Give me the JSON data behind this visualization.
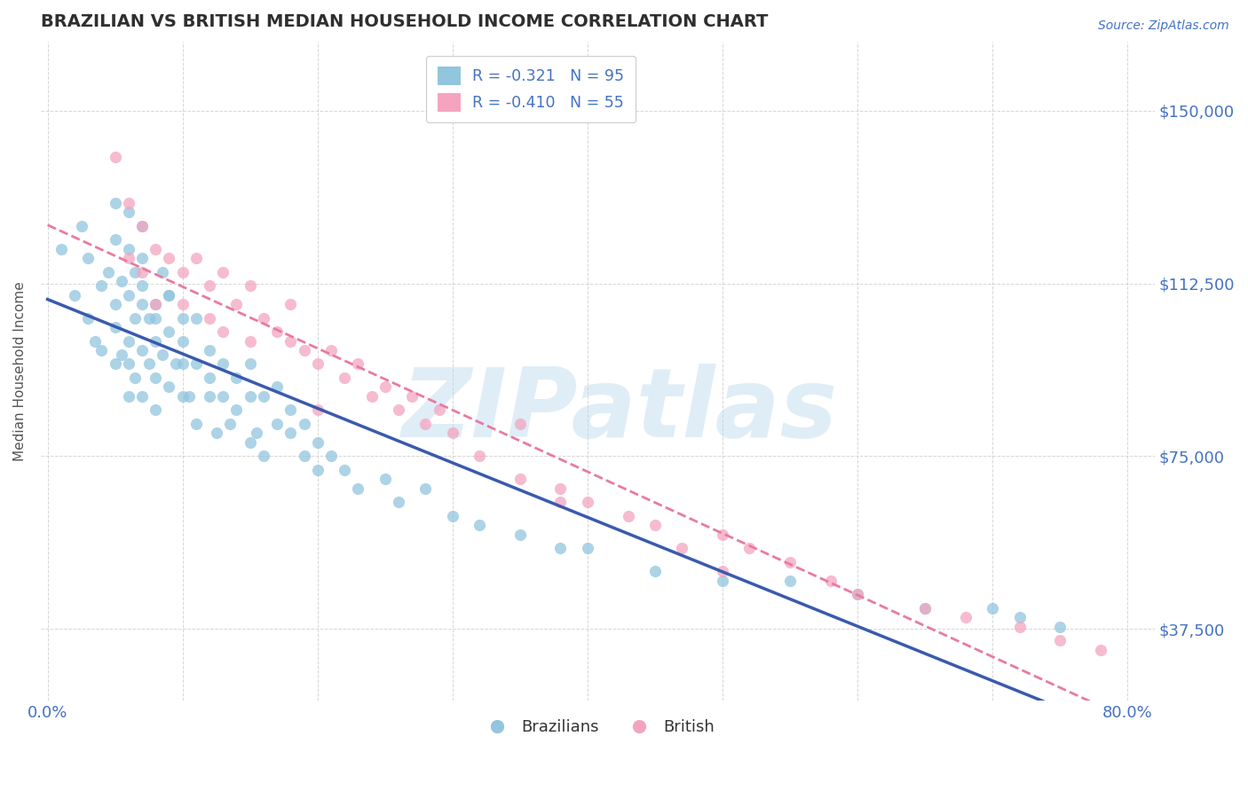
{
  "title": "BRAZILIAN VS BRITISH MEDIAN HOUSEHOLD INCOME CORRELATION CHART",
  "source_text": "Source: ZipAtlas.com",
  "ylabel": "Median Household Income",
  "xlim": [
    -0.005,
    0.82
  ],
  "ylim": [
    22000,
    165000
  ],
  "yticks": [
    37500,
    75000,
    112500,
    150000
  ],
  "ytick_labels": [
    "$37,500",
    "$75,000",
    "$112,500",
    "$150,000"
  ],
  "xticks": [
    0.0,
    0.1,
    0.2,
    0.3,
    0.4,
    0.5,
    0.6,
    0.7,
    0.8
  ],
  "brazil_color": "#92c5de",
  "british_color": "#f4a4bf",
  "brazil_R": -0.321,
  "brazil_N": 95,
  "british_R": -0.41,
  "british_N": 55,
  "brazil_line_color": "#3a5aad",
  "british_line_color": "#e87ba0",
  "title_color": "#2f2f2f",
  "tick_label_color": "#4472c4",
  "background_color": "#ffffff",
  "grid_color": "#bbbbbb",
  "watermark": "ZIPatlas",
  "brazil_scatter_x": [
    0.01,
    0.02,
    0.025,
    0.03,
    0.03,
    0.035,
    0.04,
    0.04,
    0.045,
    0.05,
    0.05,
    0.05,
    0.05,
    0.055,
    0.055,
    0.06,
    0.06,
    0.06,
    0.06,
    0.06,
    0.065,
    0.065,
    0.065,
    0.07,
    0.07,
    0.07,
    0.07,
    0.07,
    0.075,
    0.075,
    0.08,
    0.08,
    0.08,
    0.08,
    0.085,
    0.085,
    0.09,
    0.09,
    0.09,
    0.095,
    0.1,
    0.1,
    0.1,
    0.1,
    0.105,
    0.11,
    0.11,
    0.11,
    0.12,
    0.12,
    0.12,
    0.125,
    0.13,
    0.13,
    0.135,
    0.14,
    0.14,
    0.15,
    0.15,
    0.15,
    0.155,
    0.16,
    0.16,
    0.17,
    0.17,
    0.18,
    0.18,
    0.19,
    0.19,
    0.2,
    0.2,
    0.21,
    0.22,
    0.23,
    0.25,
    0.26,
    0.28,
    0.3,
    0.32,
    0.35,
    0.38,
    0.4,
    0.45,
    0.5,
    0.55,
    0.6,
    0.65,
    0.7,
    0.72,
    0.75,
    0.05,
    0.07,
    0.09,
    0.06,
    0.08
  ],
  "brazil_scatter_y": [
    120000,
    110000,
    125000,
    105000,
    118000,
    100000,
    112000,
    98000,
    115000,
    108000,
    95000,
    103000,
    122000,
    97000,
    113000,
    110000,
    100000,
    95000,
    88000,
    120000,
    105000,
    92000,
    115000,
    108000,
    98000,
    112000,
    88000,
    125000,
    95000,
    105000,
    100000,
    92000,
    108000,
    85000,
    97000,
    115000,
    102000,
    90000,
    110000,
    95000,
    100000,
    88000,
    95000,
    105000,
    88000,
    95000,
    82000,
    105000,
    92000,
    88000,
    98000,
    80000,
    88000,
    95000,
    82000,
    85000,
    92000,
    88000,
    78000,
    95000,
    80000,
    88000,
    75000,
    82000,
    90000,
    80000,
    85000,
    75000,
    82000,
    78000,
    72000,
    75000,
    72000,
    68000,
    70000,
    65000,
    68000,
    62000,
    60000,
    58000,
    55000,
    55000,
    50000,
    48000,
    48000,
    45000,
    42000,
    42000,
    40000,
    38000,
    130000,
    118000,
    110000,
    128000,
    105000
  ],
  "british_scatter_x": [
    0.05,
    0.06,
    0.06,
    0.07,
    0.07,
    0.08,
    0.08,
    0.09,
    0.1,
    0.1,
    0.11,
    0.12,
    0.12,
    0.13,
    0.13,
    0.14,
    0.15,
    0.15,
    0.16,
    0.17,
    0.18,
    0.18,
    0.19,
    0.2,
    0.21,
    0.22,
    0.23,
    0.24,
    0.25,
    0.26,
    0.27,
    0.28,
    0.29,
    0.3,
    0.32,
    0.35,
    0.38,
    0.4,
    0.43,
    0.45,
    0.5,
    0.52,
    0.55,
    0.58,
    0.6,
    0.65,
    0.68,
    0.72,
    0.75,
    0.78,
    0.2,
    0.5,
    0.47,
    0.35,
    0.38
  ],
  "british_scatter_y": [
    140000,
    130000,
    118000,
    125000,
    115000,
    120000,
    108000,
    118000,
    115000,
    108000,
    118000,
    112000,
    105000,
    115000,
    102000,
    108000,
    100000,
    112000,
    105000,
    102000,
    100000,
    108000,
    98000,
    95000,
    98000,
    92000,
    95000,
    88000,
    90000,
    85000,
    88000,
    82000,
    85000,
    80000,
    75000,
    70000,
    68000,
    65000,
    62000,
    60000,
    58000,
    55000,
    52000,
    48000,
    45000,
    42000,
    40000,
    38000,
    35000,
    33000,
    85000,
    50000,
    55000,
    82000,
    65000
  ]
}
